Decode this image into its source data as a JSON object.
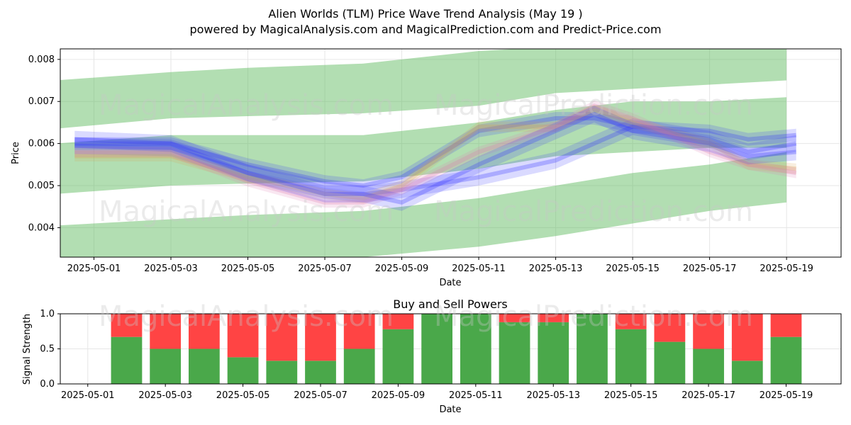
{
  "header": {
    "title": "Alien Worlds (TLM) Price Wave Trend Analysis (May 19 )",
    "subtitle": "powered by MagicalAnalysis.com and MagicalPrediction.com and Predict-Price.com"
  },
  "watermarks": [
    "MagicalAnalysis.com",
    "MagicalPrediction.com"
  ],
  "colors": {
    "band": "#5cb85c",
    "buy": "#4aa84a",
    "sell": "#ff4444",
    "wave_blue": "#3333ff",
    "wave_orange": "#d9a050",
    "wave_pink": "#e07ab0",
    "grid": "#e6e6e6"
  },
  "chart_data": [
    {
      "type": "area",
      "xlabel": "Date",
      "ylabel": "Price",
      "xlim": [
        "2025-04-30T03:00",
        "2025-05-20T10:00"
      ],
      "ylim": [
        0.0033,
        0.00825
      ],
      "y_ticks": [
        "0.004",
        "0.005",
        "0.006",
        "0.007",
        "0.008"
      ],
      "x_ticks": [
        "2025-05-01",
        "2025-05-03",
        "2025-05-05",
        "2025-05-07",
        "2025-05-09",
        "2025-05-11",
        "2025-05-13",
        "2025-05-15",
        "2025-05-17",
        "2025-05-19"
      ],
      "grid": true,
      "trend_bands": [
        {
          "name": "upper",
          "x": [
            "2025-04-30",
            "2025-05-03",
            "2025-05-05",
            "2025-05-08",
            "2025-05-11",
            "2025-05-13",
            "2025-05-15",
            "2025-05-17",
            "2025-05-19"
          ],
          "top": [
            0.0075,
            0.0077,
            0.0078,
            0.0079,
            0.0082,
            0.0083,
            0.0083,
            0.0083,
            0.0083
          ],
          "bottom": [
            0.00635,
            0.0066,
            0.00665,
            0.00672,
            0.0069,
            0.0072,
            0.0073,
            0.0074,
            0.0075
          ]
        },
        {
          "name": "middle",
          "x": [
            "2025-04-30",
            "2025-05-03",
            "2025-05-05",
            "2025-05-08",
            "2025-05-11",
            "2025-05-13",
            "2025-05-15",
            "2025-05-17",
            "2025-05-19"
          ],
          "top": [
            0.006,
            0.0062,
            0.0062,
            0.0062,
            0.0065,
            0.0068,
            0.007,
            0.007,
            0.0071
          ],
          "bottom": [
            0.0048,
            0.005,
            0.00505,
            0.0051,
            0.0054,
            0.0057,
            0.0058,
            0.0059,
            0.0059
          ]
        },
        {
          "name": "lower",
          "x": [
            "2025-04-30",
            "2025-05-03",
            "2025-05-05",
            "2025-05-08",
            "2025-05-11",
            "2025-05-13",
            "2025-05-15",
            "2025-05-17",
            "2025-05-19"
          ],
          "top": [
            0.00405,
            0.0042,
            0.0043,
            0.0044,
            0.0047,
            0.005,
            0.0053,
            0.0055,
            0.0058
          ],
          "bottom": [
            0.0033,
            0.0033,
            0.0033,
            0.0033,
            0.00355,
            0.0038,
            0.0041,
            0.0044,
            0.0046
          ]
        }
      ],
      "wave_series": [
        {
          "color": "blue",
          "x": [
            "2025-04-30T12:00",
            "2025-05-03",
            "2025-05-05",
            "2025-05-07",
            "2025-05-08",
            "2025-05-09",
            "2025-05-11",
            "2025-05-13",
            "2025-05-14",
            "2025-05-15",
            "2025-05-17",
            "2025-05-18",
            "2025-05-19T06:00"
          ],
          "values": [
            0.00595,
            0.0059,
            0.0053,
            0.0049,
            0.0048,
            0.0049,
            0.0052,
            0.0056,
            0.006,
            0.0064,
            0.0061,
            0.0058,
            0.006
          ],
          "width": 0.0004
        },
        {
          "color": "blue",
          "x": [
            "2025-04-30T12:00",
            "2025-05-03",
            "2025-05-05",
            "2025-05-07",
            "2025-05-08",
            "2025-05-09",
            "2025-05-11",
            "2025-05-13",
            "2025-05-14",
            "2025-05-15",
            "2025-05-17",
            "2025-05-18",
            "2025-05-19T06:00"
          ],
          "values": [
            0.006,
            0.006,
            0.0055,
            0.0051,
            0.005,
            0.0052,
            0.0063,
            0.0066,
            0.0066,
            0.0064,
            0.0063,
            0.0061,
            0.0062
          ],
          "width": 0.0003
        },
        {
          "color": "orange",
          "x": [
            "2025-04-30T12:00",
            "2025-05-03",
            "2025-05-05",
            "2025-05-07",
            "2025-05-08",
            "2025-05-09",
            "2025-05-11",
            "2025-05-13",
            "2025-05-14",
            "2025-05-15",
            "2025-05-17",
            "2025-05-18",
            "2025-05-19T06:00"
          ],
          "values": [
            0.0057,
            0.0057,
            0.0052,
            0.0048,
            0.0047,
            0.005,
            0.0064,
            0.0064,
            0.0068,
            0.0065,
            0.006,
            0.0055,
            0.0054
          ],
          "width": 0.00025
        },
        {
          "color": "pink",
          "x": [
            "2025-04-30T12:00",
            "2025-05-03",
            "2025-05-05",
            "2025-05-07",
            "2025-05-08",
            "2025-05-09",
            "2025-05-11",
            "2025-05-13",
            "2025-05-14",
            "2025-05-15",
            "2025-05-17",
            "2025-05-18",
            "2025-05-19T06:00"
          ],
          "values": [
            0.0058,
            0.0058,
            0.0051,
            0.0046,
            0.0046,
            0.0049,
            0.0058,
            0.0064,
            0.0069,
            0.0066,
            0.0058,
            0.0055,
            0.0053
          ],
          "width": 0.00025
        },
        {
          "color": "blue",
          "x": [
            "2025-04-30T12:00",
            "2025-05-03",
            "2025-05-05",
            "2025-05-07",
            "2025-05-08",
            "2025-05-09",
            "2025-05-11",
            "2025-05-13",
            "2025-05-14",
            "2025-05-15",
            "2025-05-17",
            "2025-05-18",
            "2025-05-19T06:00"
          ],
          "values": [
            0.0061,
            0.006,
            0.0053,
            0.0048,
            0.0048,
            0.0046,
            0.0055,
            0.0063,
            0.0067,
            0.0063,
            0.006,
            0.0057,
            0.0058
          ],
          "width": 0.0004
        }
      ]
    },
    {
      "type": "bar",
      "title": "Buy and Sell Powers",
      "xlabel": "Date",
      "ylabel": "Signal Strength",
      "ylim": [
        0,
        1
      ],
      "y_ticks": [
        "0.0",
        "0.5",
        "1.0"
      ],
      "x_ticks": [
        "2025-05-01",
        "2025-05-03",
        "2025-05-05",
        "2025-05-07",
        "2025-05-09",
        "2025-05-11",
        "2025-05-13",
        "2025-05-15",
        "2025-05-17",
        "2025-05-19"
      ],
      "categories": [
        "2025-05-02",
        "2025-05-03",
        "2025-05-04",
        "2025-05-05",
        "2025-05-06",
        "2025-05-07",
        "2025-05-08",
        "2025-05-09",
        "2025-05-10",
        "2025-05-11",
        "2025-05-12",
        "2025-05-13",
        "2025-05-14",
        "2025-05-15",
        "2025-05-16",
        "2025-05-17",
        "2025-05-18",
        "2025-05-19"
      ],
      "series": [
        {
          "values": [
            0.67,
            0.5,
            0.5,
            0.38,
            0.33,
            0.33,
            0.5,
            0.78,
            1.0,
            1.0,
            0.88,
            0.88,
            1.0,
            0.78,
            0.6,
            0.5,
            0.33,
            0.67
          ]
        },
        {
          "values": [
            0.33,
            0.5,
            0.5,
            0.62,
            0.67,
            0.67,
            0.5,
            0.22,
            0.0,
            0.0,
            0.12,
            0.12,
            0.0,
            0.22,
            0.4,
            0.5,
            0.67,
            0.33
          ]
        }
      ]
    }
  ]
}
